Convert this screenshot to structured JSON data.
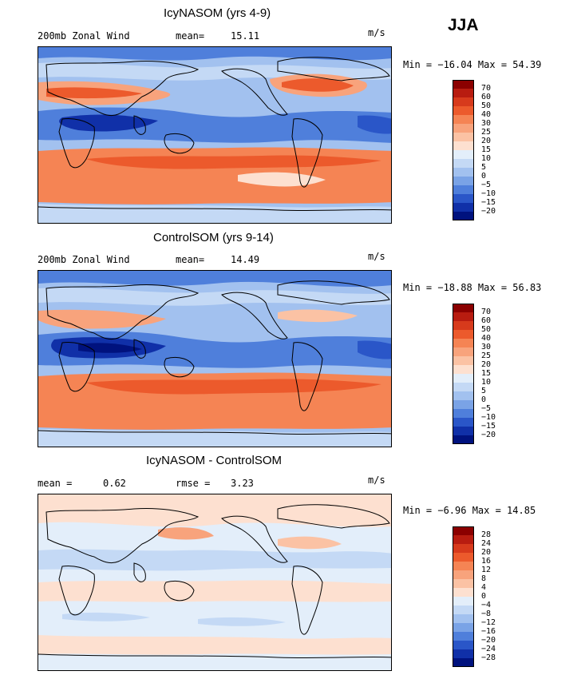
{
  "season": "JJA",
  "panels": [
    {
      "title": "IcyNASOM (yrs 4-9)",
      "left_label": "200mb Zonal Wind",
      "stat_label": "mean=",
      "stat_value": "15.11",
      "units": "m/s",
      "minmax": "Min = −16.04 Max =  54.39",
      "levels": [
        "70",
        "60",
        "50",
        "40",
        "30",
        "25",
        "20",
        "15",
        "10",
        "5",
        "0",
        "−5",
        "−10",
        "−15",
        "−20"
      ],
      "colors": [
        "#8b0000",
        "#b81c10",
        "#d73a1c",
        "#ec5a2c",
        "#f58454",
        "#f8a37c",
        "#fbc2a4",
        "#fde0d0",
        "#e3eefa",
        "#c4d9f5",
        "#a2c1ef",
        "#7aa3e6",
        "#4f7fdb",
        "#2a56c8",
        "#1030a8",
        "#00127e"
      ]
    },
    {
      "title": "ControlSOM (yrs 9-14)",
      "left_label": "200mb Zonal Wind",
      "stat_label": "mean=",
      "stat_value": "14.49",
      "units": "m/s",
      "minmax": "Min = −18.88 Max =  56.83",
      "levels": [
        "70",
        "60",
        "50",
        "40",
        "30",
        "25",
        "20",
        "15",
        "10",
        "5",
        "0",
        "−5",
        "−10",
        "−15",
        "−20"
      ],
      "colors": [
        "#8b0000",
        "#b81c10",
        "#d73a1c",
        "#ec5a2c",
        "#f58454",
        "#f8a37c",
        "#fbc2a4",
        "#fde0d0",
        "#e3eefa",
        "#c4d9f5",
        "#a2c1ef",
        "#7aa3e6",
        "#4f7fdb",
        "#2a56c8",
        "#1030a8",
        "#00127e"
      ]
    },
    {
      "title": "IcyNASOM - ControlSOM",
      "left_label": "mean =",
      "left_value": "0.62",
      "stat_label": "rmse =",
      "stat_value": "3.23",
      "units": "m/s",
      "minmax": "Min =  −6.96 Max =  14.85",
      "levels": [
        "28",
        "24",
        "20",
        "16",
        "12",
        "8",
        "4",
        "0",
        "−4",
        "−8",
        "−12",
        "−16",
        "−20",
        "−24",
        "−28"
      ],
      "colors": [
        "#8b0000",
        "#b81c10",
        "#d73a1c",
        "#ec5a2c",
        "#f58454",
        "#f8a37c",
        "#fbc2a4",
        "#fde0d0",
        "#e3eefa",
        "#c4d9f5",
        "#a2c1ef",
        "#7aa3e6",
        "#4f7fdb",
        "#2a56c8",
        "#1030a8",
        "#00127e"
      ]
    }
  ]
}
